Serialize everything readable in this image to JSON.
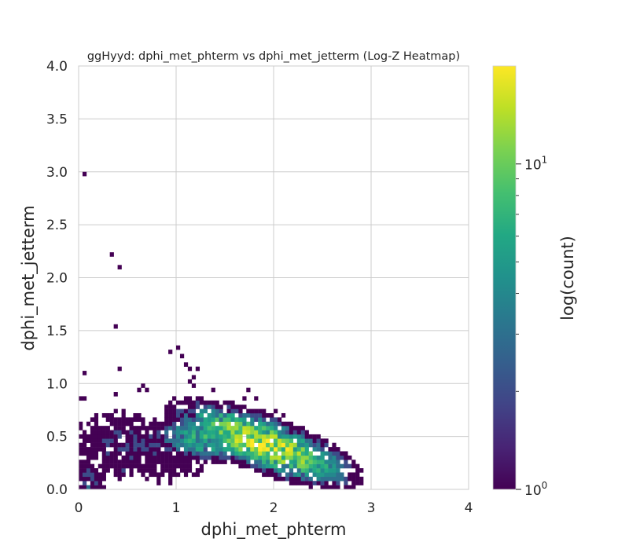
{
  "chart_data": {
    "type": "heatmap",
    "title": "ggHyyd: dphi_met_phterm vs dphi_met_jetterm (Log-Z Heatmap)",
    "xlabel": "dphi_met_phterm",
    "ylabel": "dphi_met_jetterm",
    "xlim": [
      0,
      4
    ],
    "ylim": [
      0,
      4
    ],
    "x_ticks": [
      "0",
      "1",
      "2",
      "3",
      "4"
    ],
    "y_ticks": [
      "0.0",
      "0.5",
      "1.0",
      "1.5",
      "2.0",
      "2.5",
      "3.0",
      "3.5",
      "4.0"
    ],
    "grid": true,
    "bin_width": 0.04,
    "colorbar": {
      "label": "log(count)",
      "scale": "log",
      "range": [
        1,
        20
      ],
      "colormap": "viridis",
      "tick_labels": [
        {
          "base": "10",
          "exp": "0",
          "value": 1
        },
        {
          "base": "10",
          "exp": "1",
          "value": 10
        }
      ]
    },
    "sparse_points": [
      {
        "x": 0.06,
        "y": 2.98,
        "count": 1
      },
      {
        "x": 0.34,
        "y": 2.22,
        "count": 1
      },
      {
        "x": 0.42,
        "y": 2.1,
        "count": 1
      },
      {
        "x": 0.38,
        "y": 1.54,
        "count": 1
      },
      {
        "x": 0.94,
        "y": 1.31,
        "count": 1
      },
      {
        "x": 1.02,
        "y": 1.34,
        "count": 1
      },
      {
        "x": 1.06,
        "y": 1.26,
        "count": 1
      },
      {
        "x": 1.1,
        "y": 1.18,
        "count": 1
      },
      {
        "x": 1.14,
        "y": 1.14,
        "count": 1
      },
      {
        "x": 1.22,
        "y": 1.14,
        "count": 1
      },
      {
        "x": 1.18,
        "y": 1.06,
        "count": 1
      },
      {
        "x": 0.42,
        "y": 1.14,
        "count": 1
      },
      {
        "x": 0.06,
        "y": 1.1,
        "count": 1
      },
      {
        "x": 1.14,
        "y": 1.02,
        "count": 1
      },
      {
        "x": 1.18,
        "y": 0.98,
        "count": 1
      },
      {
        "x": 0.62,
        "y": 0.94,
        "count": 1
      },
      {
        "x": 0.66,
        "y": 0.98,
        "count": 1
      },
      {
        "x": 0.7,
        "y": 0.94,
        "count": 1
      },
      {
        "x": 0.38,
        "y": 0.9,
        "count": 1
      },
      {
        "x": 0.02,
        "y": 0.86,
        "count": 1
      },
      {
        "x": 0.06,
        "y": 0.86,
        "count": 1
      },
      {
        "x": 0.98,
        "y": 0.86,
        "count": 1
      },
      {
        "x": 1.38,
        "y": 0.94,
        "count": 1
      },
      {
        "x": 1.74,
        "y": 0.94,
        "count": 1
      },
      {
        "x": 1.7,
        "y": 0.86,
        "count": 1
      },
      {
        "x": 1.82,
        "y": 0.86,
        "count": 1
      },
      {
        "x": 1.58,
        "y": 0.82,
        "count": 1
      },
      {
        "x": 1.9,
        "y": 0.74,
        "count": 1
      },
      {
        "x": 2.02,
        "y": 0.74,
        "count": 1
      },
      {
        "x": 2.1,
        "y": 0.7,
        "count": 1
      },
      {
        "x": 2.78,
        "y": 0.22,
        "count": 1
      },
      {
        "x": 2.86,
        "y": 0.22,
        "count": 1
      },
      {
        "x": 2.86,
        "y": 0.14,
        "count": 1
      },
      {
        "x": 2.74,
        "y": 0.02,
        "count": 1
      },
      {
        "x": 0.46,
        "y": 0.18,
        "count": 2
      },
      {
        "x": 0.06,
        "y": 0.06,
        "count": 2
      },
      {
        "x": 0.1,
        "y": 0.02,
        "count": 3
      },
      {
        "x": 0.14,
        "y": 0.1,
        "count": 2
      },
      {
        "x": 0.18,
        "y": 0.06,
        "count": 2
      }
    ],
    "clusters": [
      {
        "x": 1.9,
        "y": 0.43,
        "sx": 0.42,
        "sy": 0.11,
        "rot": -0.32,
        "peak": 20,
        "extent": 2.6
      },
      {
        "x": 1.3,
        "y": 0.47,
        "sx": 0.28,
        "sy": 0.1,
        "rot": -0.1,
        "peak": 8,
        "extent": 2.4
      },
      {
        "x": 0.55,
        "y": 0.4,
        "sx": 0.4,
        "sy": 0.15,
        "rot": -0.15,
        "peak": 2,
        "extent": 2.2
      },
      {
        "x": 2.45,
        "y": 0.25,
        "sx": 0.22,
        "sy": 0.1,
        "rot": -0.3,
        "peak": 7,
        "extent": 2.2
      },
      {
        "x": 0.1,
        "y": 0.12,
        "sx": 0.1,
        "sy": 0.1,
        "rot": 0.0,
        "peak": 2,
        "extent": 2.0
      }
    ]
  }
}
